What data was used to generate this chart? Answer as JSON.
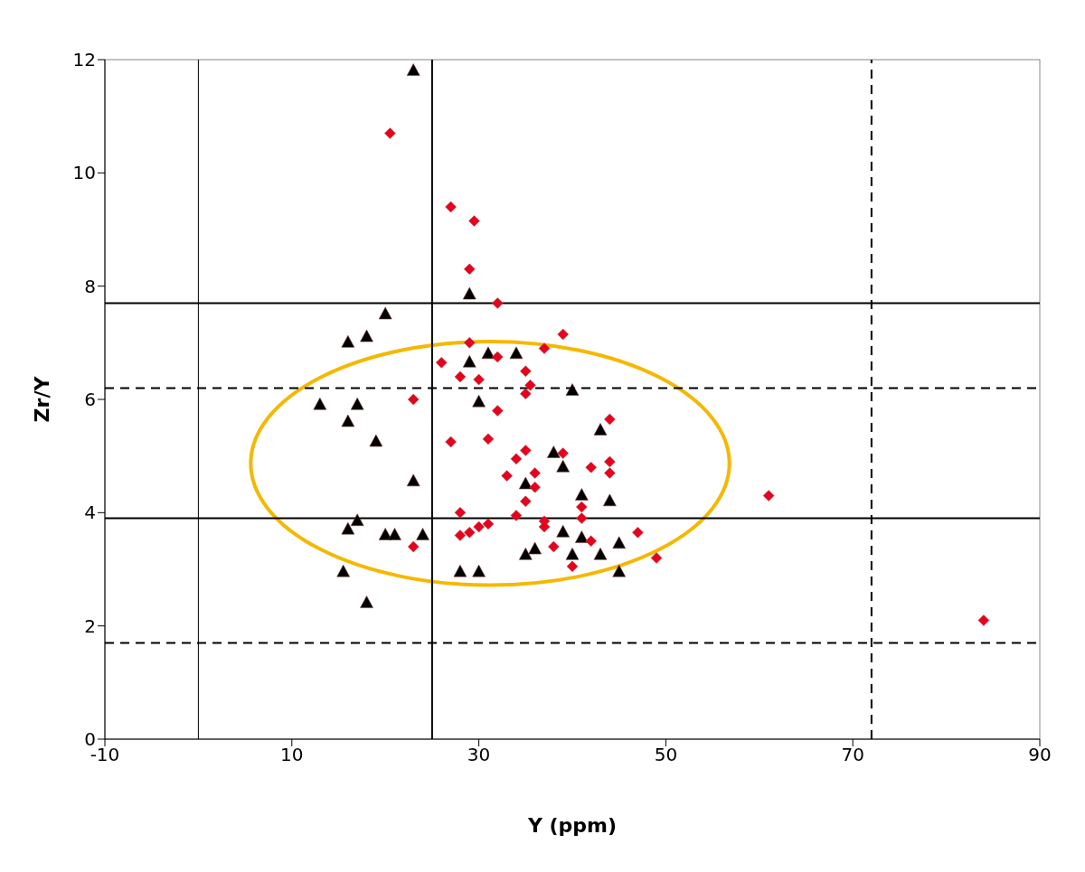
{
  "chart_data": {
    "type": "scatter",
    "xlabel": "Y (ppm)",
    "ylabel": "Zr/Y",
    "xlim": [
      -10,
      90
    ],
    "xticks": [
      -10,
      10,
      30,
      50,
      70,
      90
    ],
    "ylim": [
      0,
      12
    ],
    "yticks": [
      0,
      2,
      4,
      6,
      8,
      10,
      12
    ],
    "grid": false,
    "legend": false,
    "series": [
      {
        "color": "#000000",
        "marker": "triangle",
        "x": [
          23,
          29,
          20,
          18,
          16,
          31,
          34,
          29,
          30,
          40,
          13,
          17,
          16,
          19,
          23,
          43,
          38,
          39,
          35,
          41,
          44,
          17,
          16,
          20,
          21,
          24,
          39,
          41,
          36,
          35,
          40,
          43,
          45,
          15.5,
          28,
          30,
          45,
          18
        ],
        "values": [
          11.8,
          7.85,
          7.5,
          7.1,
          7.0,
          6.8,
          6.8,
          6.65,
          5.95,
          6.15,
          5.9,
          5.9,
          5.6,
          5.25,
          4.55,
          5.45,
          5.05,
          4.8,
          4.5,
          4.3,
          4.2,
          3.85,
          3.7,
          3.6,
          3.6,
          3.6,
          3.65,
          3.55,
          3.35,
          3.25,
          3.25,
          3.25,
          3.45,
          2.95,
          2.95,
          2.95,
          2.95,
          2.4
        ]
      },
      {
        "color": "#e8001c",
        "marker": "diamond",
        "x": [
          20.5,
          27,
          29.5,
          29,
          32,
          39,
          29,
          37,
          26,
          32,
          35,
          28,
          30,
          35.5,
          35,
          23,
          32,
          44,
          31,
          27,
          35,
          34,
          39,
          42,
          44,
          44,
          36,
          33,
          36,
          35,
          61,
          41,
          28,
          41,
          34,
          37,
          37,
          31,
          30,
          29,
          28,
          47,
          42,
          38,
          23,
          49,
          40,
          84
        ],
        "values": [
          10.7,
          9.4,
          9.15,
          8.3,
          7.7,
          7.15,
          7.0,
          6.9,
          6.65,
          6.75,
          6.5,
          6.4,
          6.35,
          6.25,
          6.1,
          6.0,
          5.8,
          5.65,
          5.3,
          5.25,
          5.1,
          4.95,
          5.05,
          4.8,
          4.9,
          4.7,
          4.7,
          4.65,
          4.45,
          4.2,
          4.3,
          4.1,
          4.0,
          3.9,
          3.95,
          3.85,
          3.75,
          3.8,
          3.75,
          3.65,
          3.6,
          3.65,
          3.5,
          3.4,
          3.4,
          3.2,
          3.05,
          2.1
        ]
      }
    ],
    "ref_lines": [
      {
        "axis": "x",
        "value": 0,
        "color": "#000000",
        "line_style": "solid"
      },
      {
        "axis": "x",
        "value": 25,
        "color": "#000000",
        "line_style": "solid"
      },
      {
        "axis": "x",
        "value": 72,
        "color": "#000000",
        "line_style": "dashed"
      },
      {
        "axis": "y",
        "value": 7.7,
        "color": "#000000",
        "line_style": "solid"
      },
      {
        "axis": "y",
        "value": 6.2,
        "color": "#000000",
        "line_style": "dashed"
      },
      {
        "axis": "y",
        "value": 3.9,
        "color": "#000000",
        "line_style": "solid"
      },
      {
        "axis": "y",
        "value": 1.7,
        "color": "#000000",
        "line_style": "dashed"
      }
    ]
  }
}
